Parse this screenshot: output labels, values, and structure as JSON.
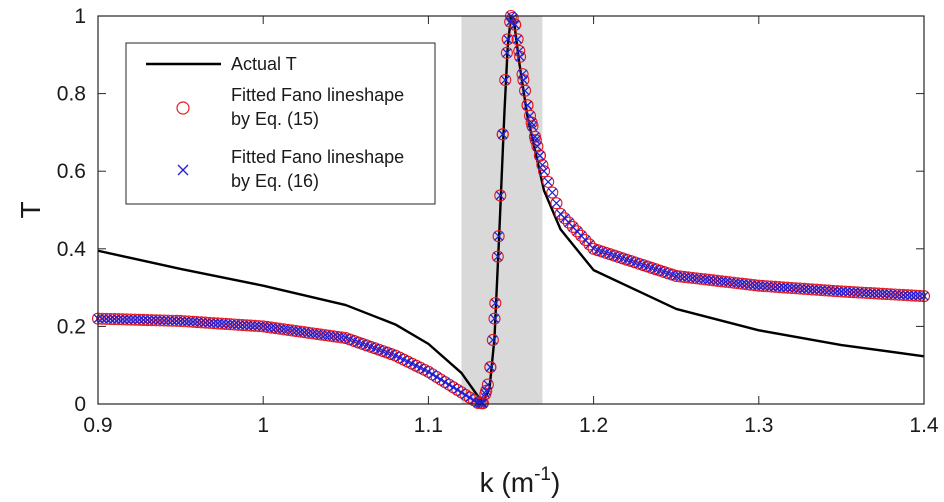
{
  "chart_data": {
    "type": "line",
    "xlabel": "k (m",
    "xlabel_sup": "-1",
    "xlabel_end": ")",
    "ylabel": "T",
    "xlim": [
      0.9,
      1.4
    ],
    "ylim": [
      0,
      1
    ],
    "x_ticks": [
      "0.9",
      "1",
      "1.1",
      "1.2",
      "1.3",
      "1.4"
    ],
    "y_ticks": [
      "0",
      "0.2",
      "0.4",
      "0.6",
      "0.8",
      "1"
    ],
    "grid": false,
    "legend_position": "top-left",
    "shaded_band": {
      "x_range": [
        1.12,
        1.169
      ],
      "color": "#d9d9d9"
    },
    "colors": {
      "actual": "#000000",
      "fit15": "#e8191c",
      "fit16": "#1f1fd6"
    },
    "legend": [
      {
        "marker": "line",
        "lines": [
          "Actual T"
        ]
      },
      {
        "marker": "circle",
        "lines": [
          "Fitted Fano lineshape",
          "by Eq. (15)"
        ]
      },
      {
        "marker": "cross",
        "lines": [
          "Fitted Fano lineshape",
          "by Eq. (16)"
        ]
      }
    ],
    "series": [
      {
        "name": "Actual T",
        "style": "line",
        "points": [
          [
            0.9,
            0.395
          ],
          [
            0.95,
            0.348
          ],
          [
            1.0,
            0.305
          ],
          [
            1.05,
            0.255
          ],
          [
            1.08,
            0.205
          ],
          [
            1.1,
            0.155
          ],
          [
            1.12,
            0.08
          ],
          [
            1.13,
            0.02
          ],
          [
            1.133,
            0.004
          ],
          [
            1.137,
            0.04
          ],
          [
            1.14,
            0.17
          ],
          [
            1.143,
            0.45
          ],
          [
            1.146,
            0.75
          ],
          [
            1.148,
            0.92
          ],
          [
            1.15,
            1.0
          ],
          [
            1.152,
            0.98
          ],
          [
            1.155,
            0.88
          ],
          [
            1.16,
            0.74
          ],
          [
            1.17,
            0.55
          ],
          [
            1.18,
            0.45
          ],
          [
            1.2,
            0.345
          ],
          [
            1.25,
            0.245
          ],
          [
            1.3,
            0.19
          ],
          [
            1.35,
            0.152
          ],
          [
            1.4,
            0.123
          ]
        ]
      },
      {
        "name": "Fitted Fano lineshape by Eq. (15)",
        "style": "circle",
        "points": [
          [
            0.9,
            0.22
          ],
          [
            0.95,
            0.214
          ],
          [
            1.0,
            0.2
          ],
          [
            1.05,
            0.17
          ],
          [
            1.08,
            0.125
          ],
          [
            1.1,
            0.083
          ],
          [
            1.12,
            0.03
          ],
          [
            1.13,
            0.003
          ],
          [
            1.133,
            0.002
          ],
          [
            1.136,
            0.05
          ],
          [
            1.138,
            0.11
          ],
          [
            1.14,
            0.22
          ],
          [
            1.142,
            0.38
          ],
          [
            1.144,
            0.59
          ],
          [
            1.146,
            0.8
          ],
          [
            1.148,
            0.94
          ],
          [
            1.15,
            1.0
          ],
          [
            1.152,
            0.99
          ],
          [
            1.154,
            0.94
          ],
          [
            1.156,
            0.88
          ],
          [
            1.158,
            0.82
          ],
          [
            1.16,
            0.77
          ],
          [
            1.165,
            0.68
          ],
          [
            1.17,
            0.6
          ],
          [
            1.18,
            0.49
          ],
          [
            1.2,
            0.4
          ],
          [
            1.25,
            0.33
          ],
          [
            1.3,
            0.305
          ],
          [
            1.35,
            0.29
          ],
          [
            1.4,
            0.278
          ]
        ]
      },
      {
        "name": "Fitted Fano lineshape by Eq. (16)",
        "style": "cross",
        "points": [
          [
            0.9,
            0.22
          ],
          [
            0.95,
            0.214
          ],
          [
            1.0,
            0.2
          ],
          [
            1.05,
            0.17
          ],
          [
            1.08,
            0.125
          ],
          [
            1.1,
            0.083
          ],
          [
            1.12,
            0.03
          ],
          [
            1.13,
            0.003
          ],
          [
            1.133,
            0.002
          ],
          [
            1.136,
            0.05
          ],
          [
            1.138,
            0.11
          ],
          [
            1.14,
            0.22
          ],
          [
            1.142,
            0.38
          ],
          [
            1.144,
            0.59
          ],
          [
            1.146,
            0.8
          ],
          [
            1.148,
            0.94
          ],
          [
            1.15,
            1.0
          ],
          [
            1.152,
            0.99
          ],
          [
            1.154,
            0.94
          ],
          [
            1.156,
            0.88
          ],
          [
            1.158,
            0.82
          ],
          [
            1.16,
            0.77
          ],
          [
            1.165,
            0.68
          ],
          [
            1.17,
            0.6
          ],
          [
            1.18,
            0.49
          ],
          [
            1.2,
            0.4
          ],
          [
            1.25,
            0.33
          ],
          [
            1.3,
            0.305
          ],
          [
            1.35,
            0.29
          ],
          [
            1.4,
            0.278
          ]
        ]
      }
    ]
  }
}
